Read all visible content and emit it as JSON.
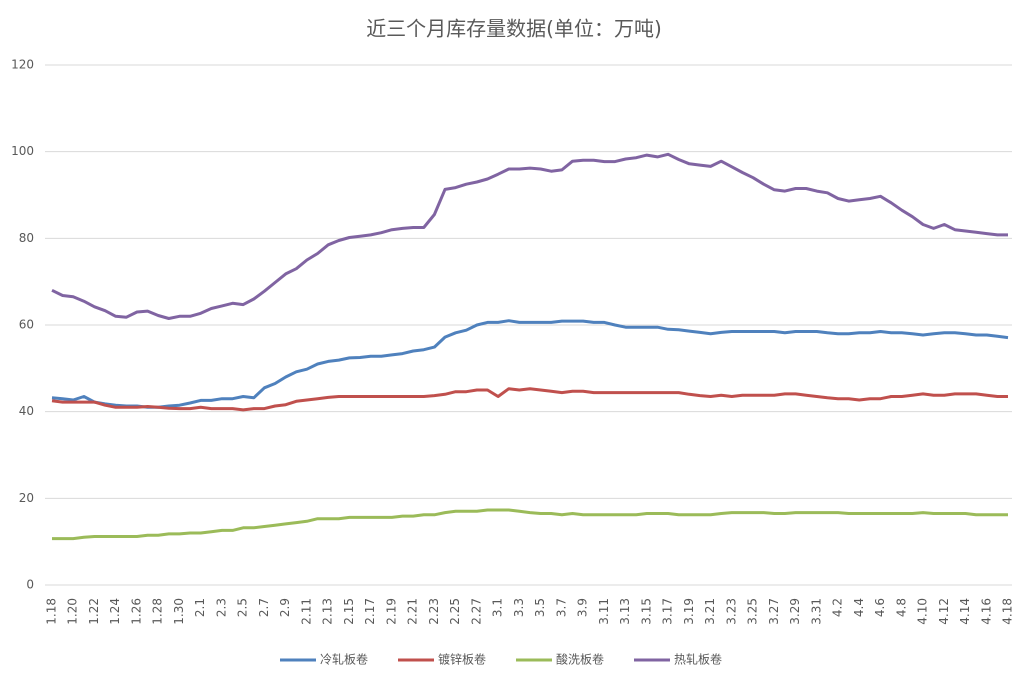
{
  "chart_data": {
    "type": "line",
    "title": "近三个月库存量数据(单位：万吨)",
    "categories": [
      "1.18",
      null,
      "1.20",
      null,
      "1.22",
      null,
      "1.24",
      null,
      "1.26",
      null,
      "1.28",
      null,
      "1.30",
      null,
      "2.1",
      null,
      "2.3",
      null,
      "2.5",
      null,
      "2.7",
      null,
      "2.9",
      null,
      "2.11",
      null,
      "2.13",
      null,
      "2.15",
      null,
      "2.17",
      null,
      "2.19",
      null,
      "2.21",
      null,
      "2.23",
      null,
      "2.25",
      null,
      "2.27",
      null,
      "3.1",
      null,
      "3.3",
      null,
      "3.5",
      null,
      "3.7",
      null,
      "3.9",
      null,
      "3.11",
      null,
      "3.13",
      null,
      "3.15",
      null,
      "3.17",
      null,
      "3.19",
      null,
      "3.21",
      null,
      "3.23",
      null,
      "3.25",
      null,
      "3.27",
      null,
      "3.29",
      null,
      "3.31",
      null,
      "4.2",
      null,
      "4.4",
      null,
      "4.6",
      null,
      "4.8",
      null,
      "4.10",
      null,
      "4.12",
      null,
      "4.14",
      null,
      "4.16",
      null,
      "4.18"
    ],
    "series": [
      {
        "name": "冷轧板卷",
        "color": "#4f81bd",
        "values": [
          43.2,
          43,
          42.7,
          43.5,
          42.2,
          41.8,
          41.5,
          41.3,
          41.3,
          41,
          41,
          41.3,
          41.5,
          42,
          42.6,
          42.6,
          43,
          43,
          43.5,
          43.2,
          45.5,
          46.5,
          48,
          49.2,
          49.8,
          51,
          51.6,
          51.9,
          52.4,
          52.5,
          52.8,
          52.8,
          53.1,
          53.4,
          54,
          54.3,
          54.9,
          57.2,
          58.2,
          58.8,
          60,
          60.6,
          60.6,
          61,
          60.6,
          60.6,
          60.6,
          60.6,
          60.9,
          60.9,
          60.9,
          60.6,
          60.6,
          60,
          59.5,
          59.5,
          59.5,
          59.5,
          59,
          58.9,
          58.6,
          58.3,
          58,
          58.3,
          58.5,
          58.5,
          58.5,
          58.5,
          58.5,
          58.2,
          58.5,
          58.5,
          58.5,
          58.2,
          58,
          58,
          58.2,
          58.2,
          58.5,
          58.2,
          58.2,
          58,
          57.7,
          58,
          58.2,
          58.2,
          58,
          57.7,
          57.7,
          57.4,
          57.1
        ]
      },
      {
        "name": "镀锌板卷",
        "color": "#c0504d",
        "values": [
          42.5,
          42.2,
          42.2,
          42.2,
          42.2,
          41.5,
          41,
          41,
          41,
          41.2,
          41,
          40.8,
          40.7,
          40.7,
          41,
          40.7,
          40.7,
          40.7,
          40.4,
          40.7,
          40.7,
          41.3,
          41.6,
          42.4,
          42.7,
          43,
          43.3,
          43.5,
          43.5,
          43.5,
          43.5,
          43.5,
          43.5,
          43.5,
          43.5,
          43.5,
          43.7,
          44,
          44.6,
          44.6,
          45,
          45,
          43.5,
          45.3,
          45,
          45.3,
          45,
          44.7,
          44.4,
          44.7,
          44.7,
          44.4,
          44.4,
          44.4,
          44.4,
          44.4,
          44.4,
          44.4,
          44.4,
          44.4,
          44,
          43.7,
          43.5,
          43.8,
          43.5,
          43.8,
          43.8,
          43.8,
          43.8,
          44.1,
          44.1,
          43.8,
          43.5,
          43.2,
          43,
          43,
          42.7,
          43,
          43,
          43.5,
          43.5,
          43.8,
          44.1,
          43.8,
          43.8,
          44.1,
          44.1,
          44.1,
          43.8,
          43.5,
          43.5
        ]
      },
      {
        "name": "酸洗板卷",
        "color": "#9bbb59",
        "values": [
          10.7,
          10.7,
          10.7,
          11,
          11.2,
          11.2,
          11.2,
          11.2,
          11.2,
          11.5,
          11.5,
          11.8,
          11.8,
          12,
          12,
          12.3,
          12.6,
          12.6,
          13.2,
          13.2,
          13.5,
          13.8,
          14.1,
          14.4,
          14.7,
          15.3,
          15.3,
          15.3,
          15.6,
          15.6,
          15.6,
          15.6,
          15.6,
          15.9,
          15.9,
          16.2,
          16.2,
          16.7,
          17,
          17,
          17,
          17.3,
          17.3,
          17.3,
          17,
          16.7,
          16.5,
          16.5,
          16.2,
          16.5,
          16.2,
          16.2,
          16.2,
          16.2,
          16.2,
          16.2,
          16.5,
          16.5,
          16.5,
          16.2,
          16.2,
          16.2,
          16.2,
          16.5,
          16.7,
          16.7,
          16.7,
          16.7,
          16.5,
          16.5,
          16.7,
          16.7,
          16.7,
          16.7,
          16.7,
          16.5,
          16.5,
          16.5,
          16.5,
          16.5,
          16.5,
          16.5,
          16.7,
          16.5,
          16.5,
          16.5,
          16.5,
          16.2,
          16.2,
          16.2,
          16.2
        ]
      },
      {
        "name": "热轧板卷",
        "color": "#8064a2",
        "values": [
          68,
          66.8,
          66.5,
          65.5,
          64.2,
          63.3,
          62,
          61.8,
          63,
          63.2,
          62.2,
          61.5,
          62,
          62,
          62.7,
          63.8,
          64.4,
          65,
          64.7,
          66,
          67.8,
          69.8,
          71.8,
          73,
          75,
          76.5,
          78.5,
          79.5,
          80.2,
          80.5,
          80.8,
          81.3,
          82,
          82.3,
          82.5,
          82.5,
          85.5,
          91.3,
          91.7,
          92.5,
          93,
          93.7,
          94.8,
          96,
          96,
          96.2,
          96,
          95.5,
          95.8,
          97.8,
          98,
          98,
          97.7,
          97.7,
          98.3,
          98.6,
          99.2,
          98.8,
          99.4,
          98.2,
          97.2,
          96.9,
          96.6,
          97.8,
          96.5,
          95.2,
          94,
          92.5,
          91.2,
          90.9,
          91.5,
          91.5,
          90.9,
          90.5,
          89.2,
          88.6,
          88.9,
          89.2,
          89.7,
          88.2,
          86.5,
          85,
          83.2,
          82.3,
          83.2,
          82,
          81.7,
          81.4,
          81.1,
          80.8,
          80.8
        ]
      }
    ],
    "ylim": [
      0,
      120
    ],
    "yticks": [
      0,
      20,
      40,
      60,
      80,
      100,
      120
    ],
    "grid": true,
    "legend": "bottom"
  }
}
